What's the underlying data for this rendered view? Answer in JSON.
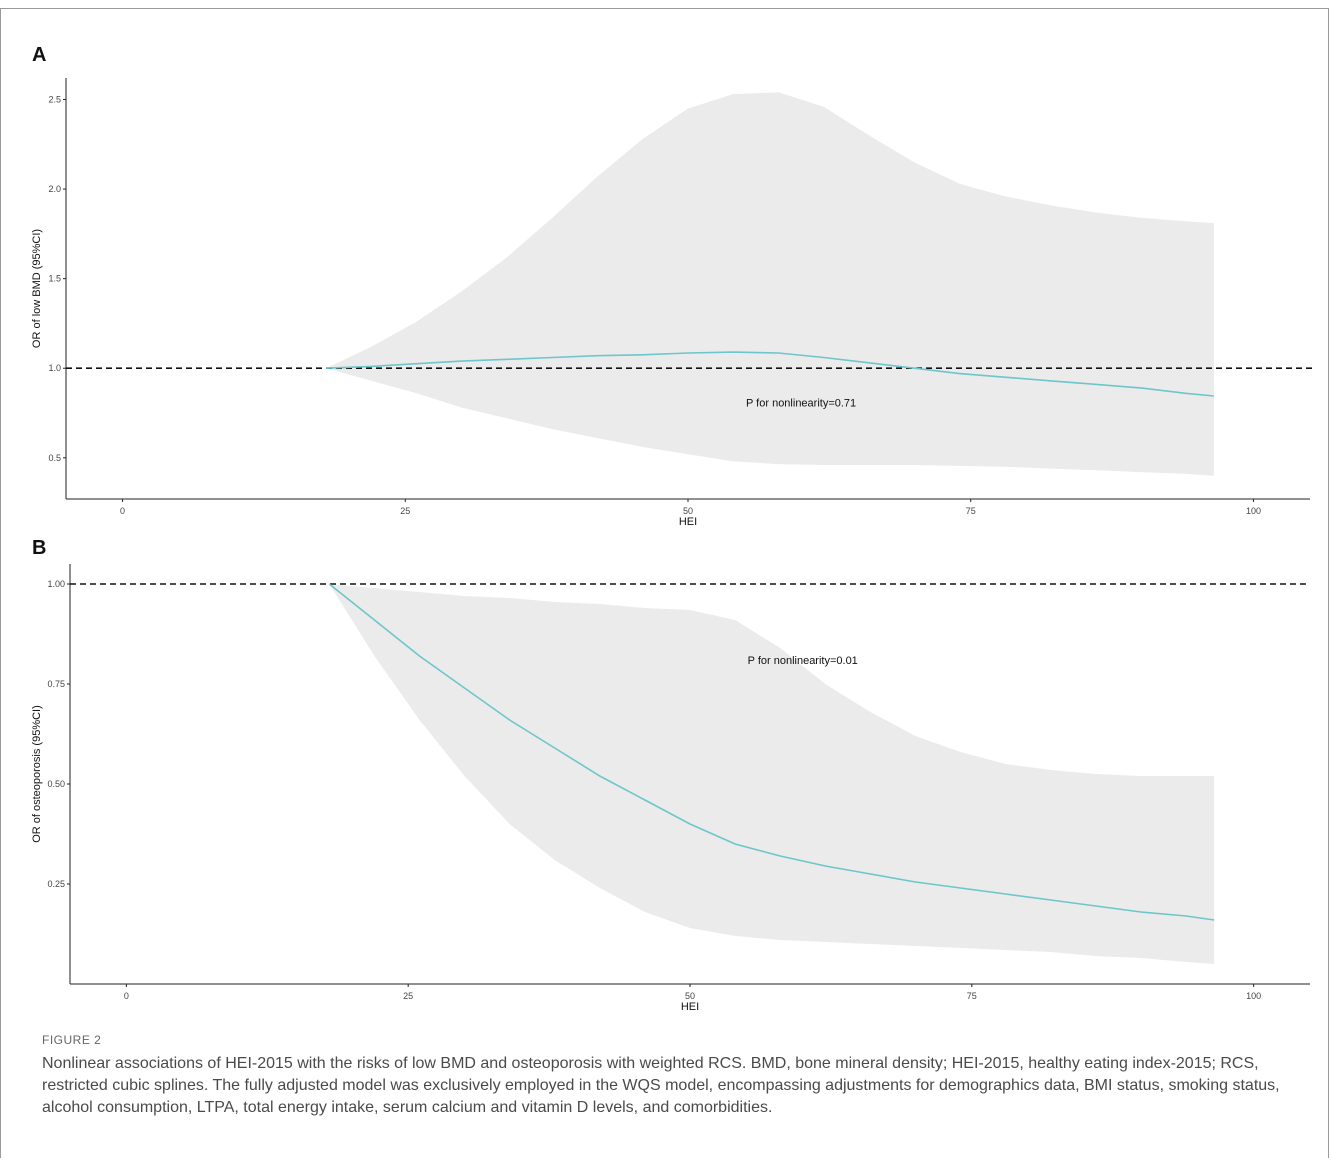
{
  "chart_data": [
    {
      "type": "line",
      "panel_label": "A",
      "xlabel": "HEI",
      "ylabel": "OR of low BMD (95%CI)",
      "xlim": [
        -5,
        105
      ],
      "ylim": [
        0.27,
        2.62
      ],
      "xticks": [
        0,
        25,
        50,
        75,
        100
      ],
      "yticks": [
        0.5,
        1.0,
        1.5,
        2.0,
        2.5
      ],
      "ytick_labels": [
        "0.5",
        "1.0",
        "1.5",
        "2.0",
        "2.5"
      ],
      "reference_line": 1.0,
      "annotation": {
        "text": "P for nonlinearity=0.71",
        "x": 60,
        "y": 0.81
      },
      "grid": false,
      "line_color": "#6cc6cc",
      "band_color": "#ebebeb",
      "series": [
        {
          "x": [
            18,
            22,
            26,
            30,
            34,
            38,
            42,
            46,
            50,
            54,
            58,
            62,
            66,
            70,
            74,
            78,
            82,
            86,
            90,
            94,
            96.5
          ],
          "y": [
            1.0,
            1.01,
            1.025,
            1.04,
            1.05,
            1.06,
            1.07,
            1.075,
            1.085,
            1.09,
            1.085,
            1.06,
            1.03,
            1.0,
            0.97,
            0.95,
            0.93,
            0.91,
            0.89,
            0.86,
            0.845
          ],
          "lower": [
            1.0,
            0.93,
            0.86,
            0.78,
            0.72,
            0.66,
            0.61,
            0.56,
            0.52,
            0.48,
            0.465,
            0.46,
            0.46,
            0.46,
            0.455,
            0.45,
            0.44,
            0.43,
            0.42,
            0.41,
            0.4
          ],
          "upper": [
            1.0,
            1.12,
            1.26,
            1.43,
            1.62,
            1.84,
            2.07,
            2.28,
            2.45,
            2.53,
            2.54,
            2.46,
            2.3,
            2.15,
            2.03,
            1.96,
            1.91,
            1.87,
            1.84,
            1.82,
            1.81
          ]
        }
      ]
    },
    {
      "type": "line",
      "panel_label": "B",
      "xlabel": "HEI",
      "ylabel": "OR of osteoporosis (95%CI)",
      "xlim": [
        -5,
        105
      ],
      "ylim": [
        0.0,
        1.05
      ],
      "xticks": [
        0,
        25,
        50,
        75,
        100
      ],
      "yticks": [
        0.25,
        0.5,
        0.75,
        1.0
      ],
      "ytick_labels": [
        "0.25",
        "0.50",
        "0.75",
        "1.00"
      ],
      "reference_line": 1.0,
      "annotation": {
        "text": "P for nonlinearity=0.01",
        "x": 60,
        "y": 0.81
      },
      "grid": false,
      "line_color": "#6cc6cc",
      "band_color": "#ebebeb",
      "series": [
        {
          "x": [
            18,
            22,
            26,
            30,
            34,
            38,
            42,
            46,
            50,
            54,
            58,
            62,
            66,
            70,
            74,
            78,
            82,
            86,
            90,
            94,
            96.5
          ],
          "y": [
            1.0,
            0.91,
            0.82,
            0.74,
            0.66,
            0.59,
            0.52,
            0.46,
            0.4,
            0.35,
            0.32,
            0.295,
            0.275,
            0.255,
            0.24,
            0.225,
            0.21,
            0.195,
            0.18,
            0.17,
            0.16
          ],
          "lower": [
            1.0,
            0.82,
            0.66,
            0.52,
            0.4,
            0.31,
            0.24,
            0.18,
            0.14,
            0.12,
            0.11,
            0.105,
            0.1,
            0.095,
            0.09,
            0.085,
            0.08,
            0.07,
            0.065,
            0.055,
            0.05
          ],
          "upper": [
            1.0,
            0.99,
            0.98,
            0.97,
            0.965,
            0.955,
            0.95,
            0.94,
            0.935,
            0.91,
            0.84,
            0.75,
            0.68,
            0.62,
            0.58,
            0.55,
            0.535,
            0.525,
            0.52,
            0.52,
            0.52
          ]
        }
      ]
    }
  ],
  "caption": {
    "label": "FIGURE 2",
    "text": "Nonlinear associations of HEI-2015 with the risks of low BMD and osteoporosis with weighted RCS. BMD, bone mineral density; HEI-2015, healthy eating index-2015; RCS, restricted cubic splines. The fully adjusted model was exclusively employed in the WQS model, encompassing adjustments for demographics data, BMI status, smoking status, alcohol consumption, LTPA, total energy intake, serum calcium and vitamin D levels, and comorbidities."
  }
}
